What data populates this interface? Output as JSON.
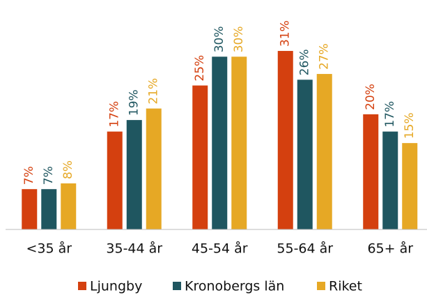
{
  "chart_data": {
    "type": "bar",
    "categories": [
      "<35 år",
      "35-44 år",
      "45-54 år",
      "55-64 år",
      "65+ år"
    ],
    "series": [
      {
        "name": "Ljungby",
        "color": "#d4400f",
        "values": [
          7,
          17,
          25,
          31,
          20
        ],
        "value_labels": [
          "7%",
          "17%",
          "25%",
          "31%",
          "20%"
        ]
      },
      {
        "name": "Kronobergs län",
        "color": "#1f5660",
        "values": [
          7,
          19,
          30,
          26,
          17
        ],
        "value_labels": [
          "7%",
          "19%",
          "30%",
          "26%",
          "17%"
        ]
      },
      {
        "name": "Riket",
        "color": "#e6a825",
        "values": [
          8,
          21,
          30,
          27,
          15
        ],
        "value_labels": [
          "8%",
          "21%",
          "30%",
          "27%",
          "15%"
        ]
      }
    ],
    "ylim": [
      0,
      35
    ],
    "legend": "bottom"
  }
}
